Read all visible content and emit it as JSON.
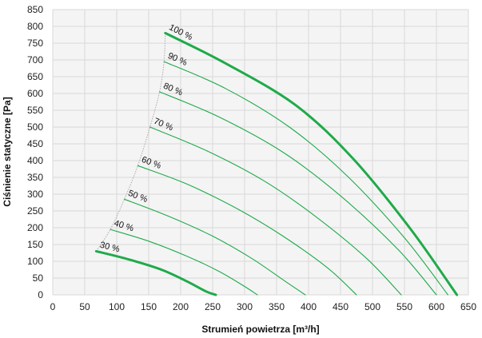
{
  "chart_data": {
    "type": "line",
    "title": "",
    "xlabel": "Strumień powietrza [m³/h]",
    "ylabel": "Ciśnienie statyczne [Pa]",
    "xlim": [
      0,
      650
    ],
    "ylim": [
      0,
      850
    ],
    "xticks": [
      0,
      50,
      100,
      150,
      200,
      250,
      300,
      350,
      400,
      450,
      500,
      550,
      600,
      650
    ],
    "yticks": [
      0,
      50,
      100,
      150,
      200,
      250,
      300,
      350,
      400,
      450,
      500,
      550,
      600,
      650,
      700,
      750,
      800,
      850
    ],
    "grid": true,
    "color": "#1faa4a",
    "boundary_color": "#aaaaaa",
    "series": [
      {
        "name": "30 %",
        "bold": true,
        "x": [
          68,
          120,
          170,
          210,
          240,
          255
        ],
        "y": [
          130,
          105,
          75,
          40,
          10,
          0
        ]
      },
      {
        "name": "40 %",
        "bold": false,
        "x": [
          90,
          150,
          210,
          260,
          300,
          320
        ],
        "y": [
          195,
          160,
          115,
          70,
          25,
          0
        ]
      },
      {
        "name": "50 %",
        "bold": false,
        "x": [
          112,
          180,
          250,
          310,
          360,
          395
        ],
        "y": [
          285,
          235,
          175,
          110,
          45,
          0
        ]
      },
      {
        "name": "60 %",
        "bold": false,
        "x": [
          133,
          210,
          290,
          360,
          430,
          475
        ],
        "y": [
          385,
          330,
          255,
          175,
          80,
          0
        ]
      },
      {
        "name": "70 %",
        "bold": false,
        "x": [
          152,
          240,
          330,
          410,
          490,
          545
        ],
        "y": [
          500,
          430,
          340,
          235,
          110,
          0
        ]
      },
      {
        "name": "80 %",
        "bold": false,
        "x": [
          167,
          260,
          360,
          450,
          540,
          600
        ],
        "y": [
          605,
          530,
          425,
          295,
          135,
          0
        ]
      },
      {
        "name": "90 %",
        "bold": false,
        "x": [
          174,
          270,
          370,
          460,
          550,
          618
        ],
        "y": [
          695,
          615,
          500,
          355,
          170,
          0
        ]
      },
      {
        "name": "100 %",
        "bold": true,
        "x": [
          176,
          270,
          380,
          470,
          560,
          632
        ],
        "y": [
          780,
          690,
          565,
          405,
          195,
          0
        ]
      }
    ]
  }
}
